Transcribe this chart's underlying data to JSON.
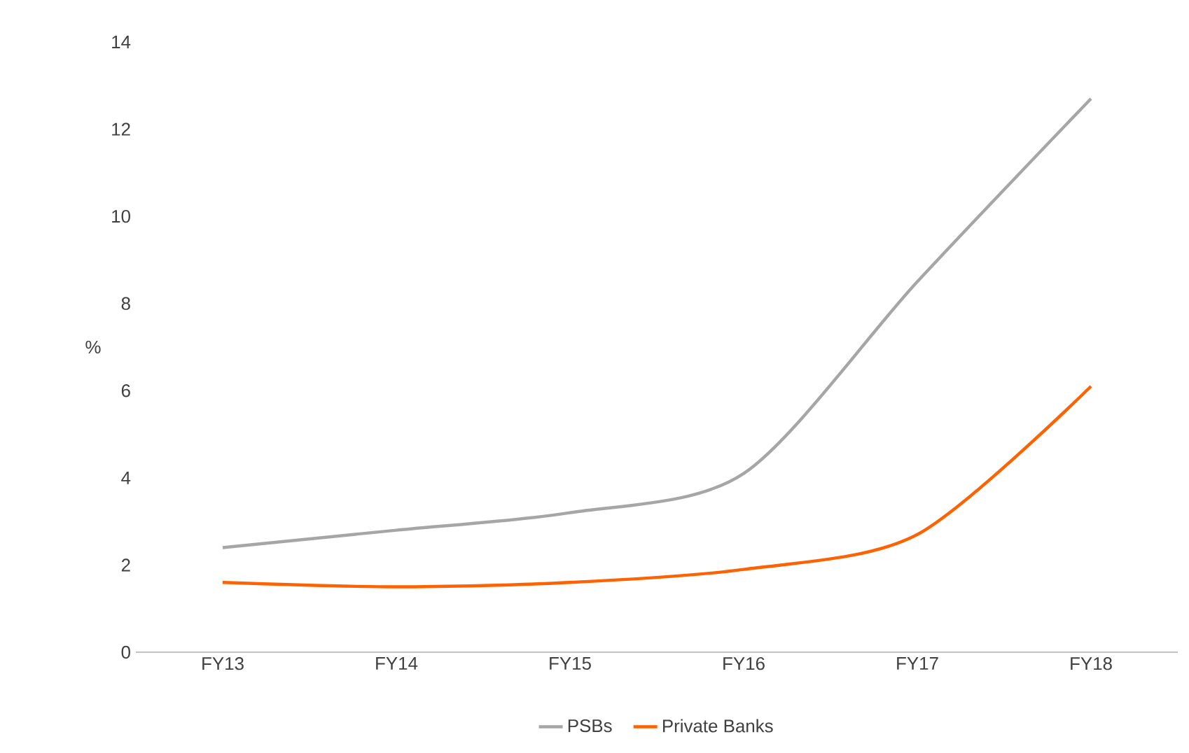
{
  "chart_data": {
    "type": "line",
    "ylabel": "%",
    "categories": [
      "FY13",
      "FY14",
      "FY15",
      "FY16",
      "FY17",
      "FY18"
    ],
    "series": [
      {
        "name": "PSBs",
        "color": "#a6a6a6",
        "values": [
          2.4,
          2.8,
          3.2,
          4.1,
          8.5,
          12.7
        ]
      },
      {
        "name": "Private Banks",
        "color": "#ff6200",
        "values": [
          1.6,
          1.5,
          1.6,
          1.9,
          2.7,
          6.1
        ]
      }
    ],
    "ylim": [
      0,
      14
    ],
    "yticks": [
      0,
      2,
      4,
      6,
      8,
      10,
      12,
      14
    ],
    "legend": "bottom",
    "grid": false,
    "marker": "none",
    "line_style": "solid"
  }
}
